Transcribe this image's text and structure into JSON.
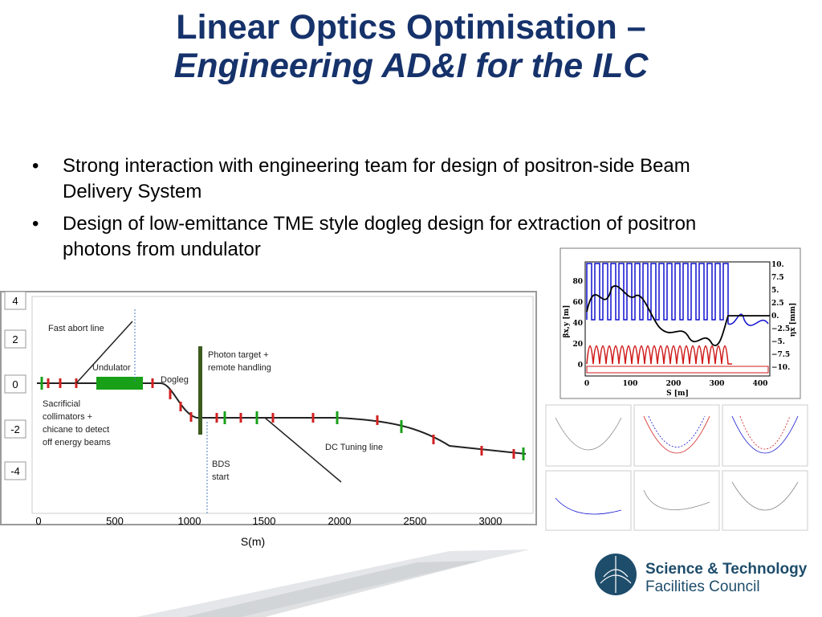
{
  "slide": {
    "title_line1": "Linear Optics Optimisation –",
    "title_line2": "Engineering AD&I for the ILC",
    "bullet_symbol": "•",
    "bullets": [
      "Strong interaction with engineering team for design of positron-side Beam Delivery System",
      "Design of low-emittance TME style dogleg design for extraction of positron photons from undulator"
    ]
  },
  "layout_plot": {
    "xlabel": "S(m)",
    "x_ticks": [
      "0",
      "500",
      "1000",
      "1500",
      "2000",
      "2500",
      "3000"
    ],
    "y_ticks": [
      "4",
      "2",
      "0",
      "-2",
      "-4"
    ],
    "annotations": [
      "Fast abort line",
      "Undulator",
      "Dogleg",
      "Photon target +",
      "remote handling",
      "Sacrificial",
      "collimators +",
      "chicane to detect",
      "off energy beams",
      "DC Tuning line",
      "BDS",
      "start"
    ]
  },
  "beta_plot": {
    "xlabel": "S [m]",
    "ylabel_left": "βx,y [m]",
    "ylabel_right": "ηx [mm]",
    "x_ticks": [
      "0",
      "100",
      "200",
      "300",
      "400"
    ],
    "y_ticks_left": [
      "80",
      "60",
      "40",
      "20",
      "0"
    ],
    "y_ticks_right": [
      "10.",
      "7.5",
      "5.",
      "2.5",
      "0.",
      "−2.5",
      "−5.",
      "−7.5",
      "−10."
    ]
  },
  "logo": {
    "line1": "Science & Technology",
    "line2": "Facilities Council"
  },
  "colors": {
    "title": "#16326b",
    "logo": "#1e4d6b",
    "beta_x": "#1010d0",
    "beta_y": "#d01818",
    "dispersion": "#000000",
    "beamline_red": "#d22020",
    "beamline_green": "#18a018"
  }
}
